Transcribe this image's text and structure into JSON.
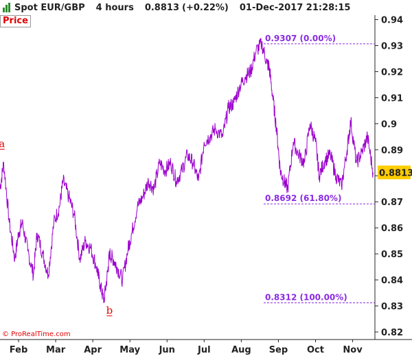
{
  "header": {
    "instrument": "Spot EUR/GBP",
    "timeframe": "4 hours",
    "last": "0.8813",
    "change": "(+0.22%)",
    "datetime": "01-Dec-2017 21:28:15",
    "icon": "bar-chart-icon"
  },
  "panel_label": "Price",
  "copyright": "© ProRealTime.com",
  "colors": {
    "price_line": "#9b00cc",
    "fib": "#8a2be2",
    "wave_label": "#e00000",
    "current_price_bg": "#ffcc00"
  },
  "chart_data": {
    "type": "line",
    "ylim": [
      0.815,
      0.947
    ],
    "grid": false,
    "y_ticks": [
      0.82,
      0.83,
      0.84,
      0.85,
      0.86,
      0.87,
      0.88,
      0.89,
      0.9,
      0.91,
      0.92,
      0.93,
      0.94
    ],
    "y_tick_labels": [
      "0.82",
      "0.83",
      "0.84",
      "0.85",
      "0.86",
      "0.87",
      "",
      "0.89",
      "0.9",
      "0.91",
      "0.92",
      "0.93",
      "0.94"
    ],
    "x_labels": [
      "Feb",
      "Mar",
      "Apr",
      "May",
      "Jun",
      "Jul",
      "Aug",
      "Sep",
      "Oct",
      "Nov"
    ],
    "x_label_positions": [
      0.5,
      1.5,
      2.5,
      3.5,
      4.5,
      5.5,
      6.5,
      7.5,
      8.5,
      9.5
    ],
    "x_range": [
      0,
      10.1
    ],
    "series": [
      {
        "x": [
          0.0,
          0.1,
          0.25,
          0.4,
          0.5,
          0.6,
          0.75,
          0.9,
          1.0,
          1.15,
          1.3,
          1.45,
          1.6,
          1.7,
          1.85,
          2.0,
          2.15,
          2.3,
          2.45,
          2.6,
          2.7,
          2.8,
          2.9,
          2.95,
          3.05,
          3.15,
          3.3,
          3.45,
          3.55,
          3.7,
          3.85,
          4.0,
          4.15,
          4.3,
          4.45,
          4.6,
          4.75,
          4.9,
          5.05,
          5.2,
          5.35,
          5.5,
          5.65,
          5.8,
          6.0,
          6.15,
          6.3,
          6.45,
          6.6,
          6.75,
          6.9,
          7.05,
          7.2,
          7.25,
          7.35,
          7.45,
          7.55,
          7.65,
          7.75,
          7.9,
          8.05,
          8.2,
          8.35,
          8.5,
          8.6,
          8.75,
          8.9,
          9.05,
          9.2,
          9.35,
          9.45,
          9.6,
          9.75,
          9.9,
          10.05
        ],
        "values": [
          0.875,
          0.885,
          0.862,
          0.848,
          0.858,
          0.862,
          0.851,
          0.842,
          0.858,
          0.85,
          0.842,
          0.862,
          0.868,
          0.878,
          0.872,
          0.865,
          0.848,
          0.855,
          0.852,
          0.845,
          0.838,
          0.832,
          0.843,
          0.85,
          0.848,
          0.845,
          0.84,
          0.852,
          0.858,
          0.868,
          0.872,
          0.878,
          0.875,
          0.885,
          0.882,
          0.885,
          0.878,
          0.882,
          0.888,
          0.885,
          0.878,
          0.893,
          0.895,
          0.898,
          0.895,
          0.906,
          0.908,
          0.914,
          0.918,
          0.92,
          0.928,
          0.9307,
          0.923,
          0.922,
          0.91,
          0.898,
          0.882,
          0.878,
          0.875,
          0.893,
          0.888,
          0.885,
          0.9,
          0.893,
          0.88,
          0.886,
          0.888,
          0.88,
          0.876,
          0.89,
          0.901,
          0.885,
          0.889,
          0.895,
          0.8813
        ]
      }
    ],
    "fib_levels": [
      {
        "value": 0.9307,
        "label": "0.9307 (0.00%)"
      },
      {
        "value": 0.8692,
        "label": "0.8692 (61.80%)"
      },
      {
        "value": 0.8312,
        "label": "0.8312 (100.00%)"
      }
    ],
    "wave_labels": [
      {
        "text": "a",
        "x": 0.05,
        "y": 0.891
      },
      {
        "text": "b",
        "x": 2.95,
        "y": 0.827
      }
    ],
    "current_price": "0.8813"
  }
}
